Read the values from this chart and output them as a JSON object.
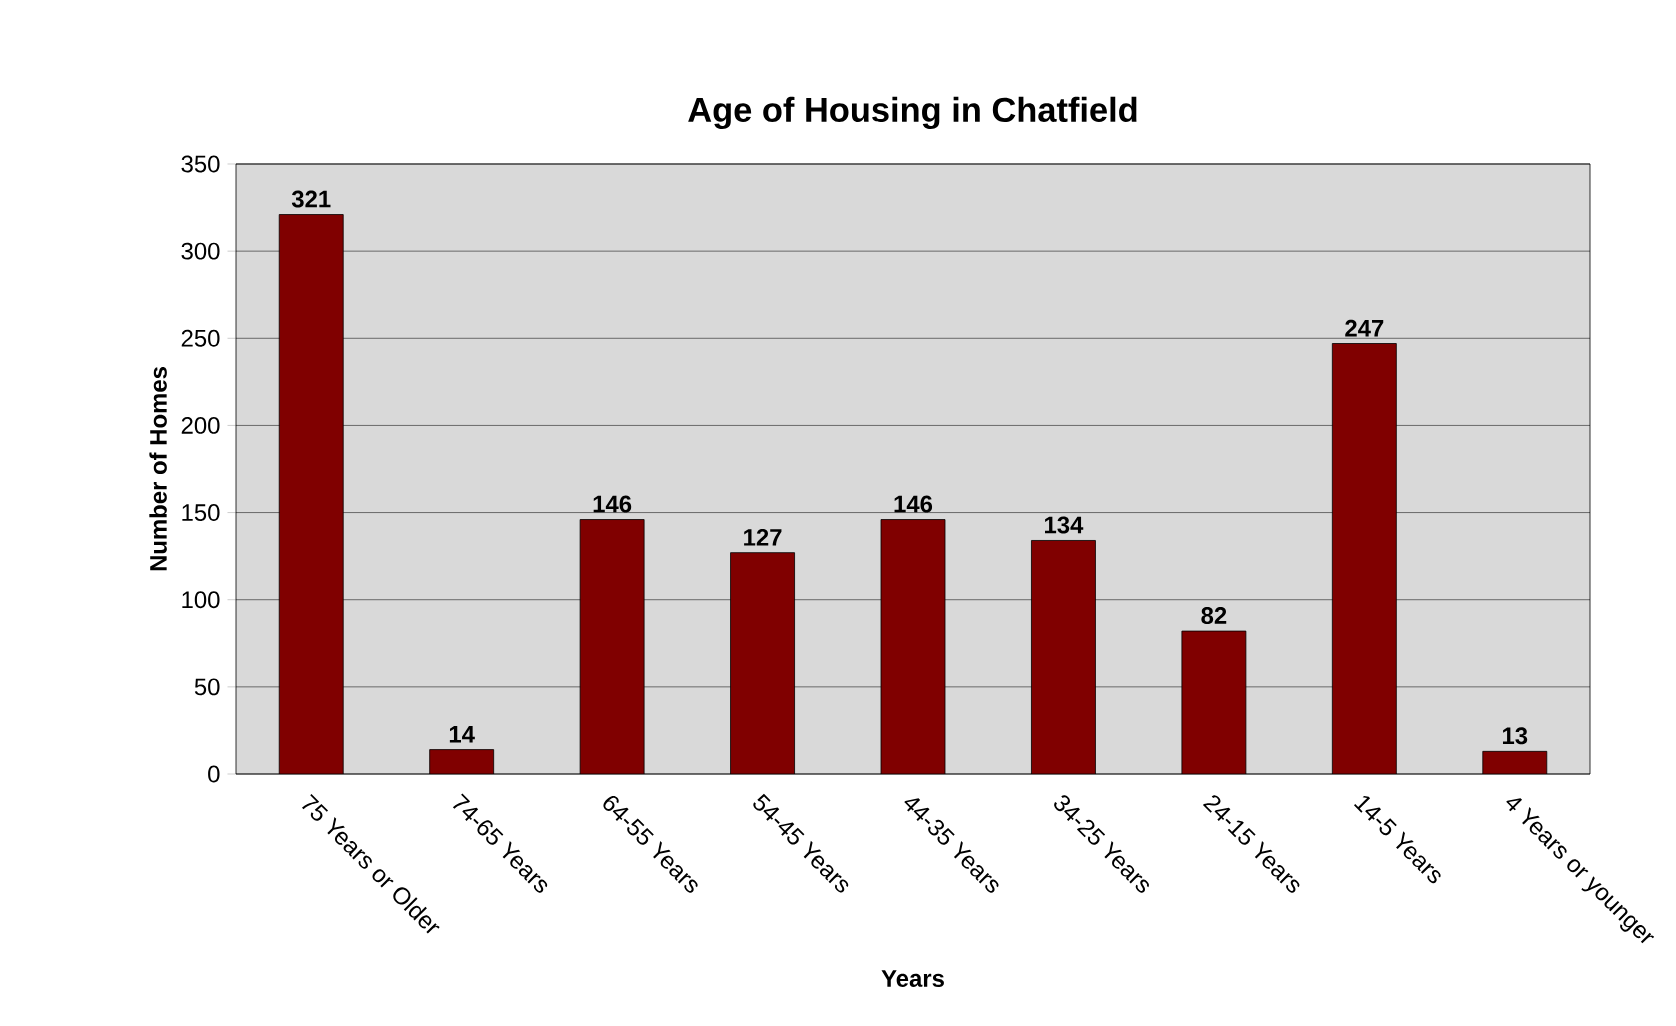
{
  "chart_data": {
    "type": "bar",
    "title": "Age of Housing in Chatfield",
    "xlabel": "Years",
    "ylabel": "Number of Homes",
    "categories": [
      "75 Years or Older",
      "74-65 Years",
      "64-55 Years",
      "54-45 Years",
      "44-35 Years",
      "34-25 Years",
      "24-15 Years",
      "14-5 Years",
      "4 Years or younger"
    ],
    "values": [
      321,
      14,
      146,
      127,
      146,
      134,
      82,
      247,
      13
    ],
    "color": "#800000",
    "ylim": [
      0,
      350
    ],
    "yticks": [
      0,
      50,
      100,
      150,
      200,
      250,
      300,
      350
    ],
    "grid": "y",
    "data_labels": true
  }
}
